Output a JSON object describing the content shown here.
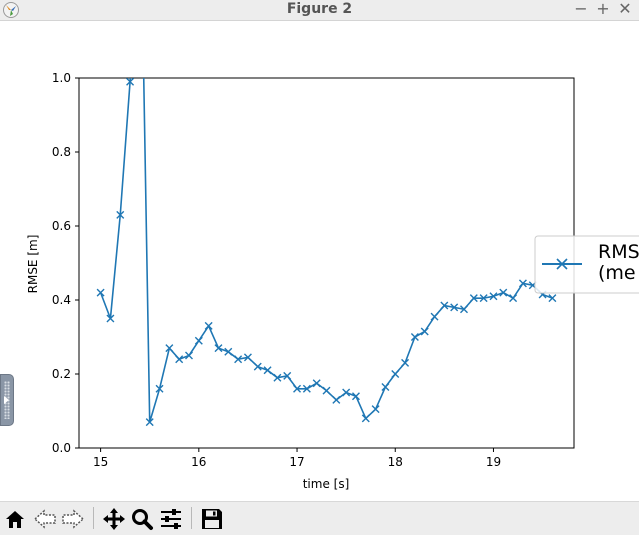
{
  "window": {
    "title": "Figure 2",
    "minimize_glyph": "−",
    "maximize_glyph": "+",
    "close_glyph": "✕"
  },
  "colors": {
    "line": "#1f77b4",
    "titlebar": "#ededed",
    "toolbar": "#ededed"
  },
  "toolbar": {
    "buttons": [
      {
        "icon": "home-icon"
      },
      {
        "icon": "back-arrow-icon"
      },
      {
        "icon": "forward-arrow-icon"
      },
      {
        "icon": "pan-icon"
      },
      {
        "icon": "zoom-icon"
      },
      {
        "icon": "configure-subplots-icon"
      },
      {
        "icon": "save-icon"
      }
    ]
  },
  "chart_data": {
    "type": "line",
    "xlabel": "time [s]",
    "ylabel": "RMSE [m]",
    "xlim": [
      14.78,
      19.82
    ],
    "ylim": [
      0.0,
      1.0
    ],
    "xticks": [
      15,
      16,
      17,
      18,
      19
    ],
    "xtick_labels": [
      "15",
      "16",
      "17",
      "18",
      "19"
    ],
    "yticks": [
      0.0,
      0.2,
      0.4,
      0.6,
      0.8,
      1.0
    ],
    "ytick_labels": [
      "0.0",
      "0.2",
      "0.4",
      "0.6",
      "0.8",
      "1.0"
    ],
    "marker": "x",
    "legend_placement": "right, clipped at window edge",
    "legend_lines": [
      "RMS",
      "(me"
    ],
    "series": [
      {
        "x": [
          15.0,
          15.1,
          15.2,
          15.3,
          15.4,
          15.5,
          15.6,
          15.7,
          15.8,
          15.9,
          16.0,
          16.1,
          16.2,
          16.3,
          16.4,
          16.5,
          16.6,
          16.7,
          16.8,
          16.9,
          17.0,
          17.1,
          17.2,
          17.3,
          17.4,
          17.5,
          17.6,
          17.7,
          17.8,
          17.9,
          18.0,
          18.1,
          18.2,
          18.3,
          18.4,
          18.5,
          18.6,
          18.7,
          18.8,
          18.9,
          19.0,
          19.1,
          19.2,
          19.3,
          19.4,
          19.5,
          19.6
        ],
        "y": [
          0.42,
          0.35,
          0.63,
          0.99,
          1.6,
          0.07,
          0.16,
          0.27,
          0.24,
          0.25,
          0.29,
          0.33,
          0.27,
          0.26,
          0.24,
          0.245,
          0.22,
          0.21,
          0.19,
          0.195,
          0.16,
          0.16,
          0.175,
          0.155,
          0.13,
          0.15,
          0.14,
          0.08,
          0.105,
          0.165,
          0.2,
          0.23,
          0.3,
          0.315,
          0.355,
          0.385,
          0.38,
          0.375,
          0.405,
          0.405,
          0.41,
          0.42,
          0.405,
          0.445,
          0.44,
          0.415,
          0.405
        ]
      }
    ]
  }
}
